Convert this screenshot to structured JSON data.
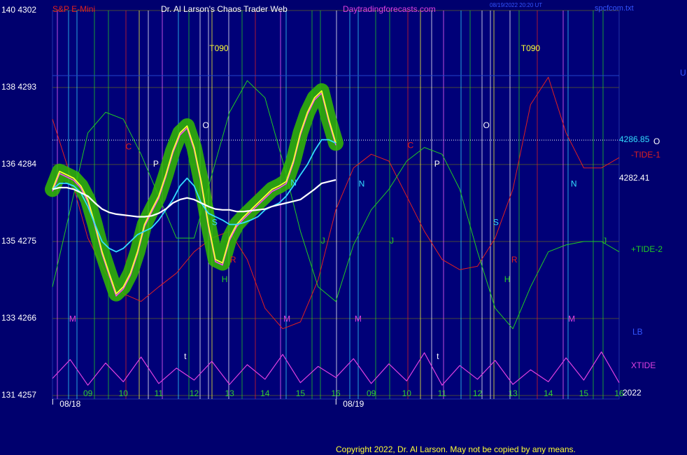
{
  "chart_data": {
    "type": "line",
    "instrument": "S&P E-Mini",
    "title": "Dr. Al Larson's Chaos Trader Web",
    "site": "Daytradingforecasts.com",
    "timestamp": "08/19/2022 20:20 UT",
    "file": "spcfcom.txt",
    "copyright": "Copyright 2022, Dr. Al Larson. May not be copied by any means.",
    "year": "2022",
    "xlim": [
      -1,
      15
    ],
    "ylim": [
      4257,
      4302
    ],
    "yticks": [
      {
        "value": 4302,
        "label": "140 4302"
      },
      {
        "value": 4293,
        "label": "138 4293"
      },
      {
        "value": 4284,
        "label": "136 4284"
      },
      {
        "value": 4275,
        "label": "135 4275"
      },
      {
        "value": 4266,
        "label": "133 4266"
      },
      {
        "value": 4257,
        "label": "131 4257"
      }
    ],
    "xticks": [
      {
        "value": 0,
        "label": "09"
      },
      {
        "value": 1,
        "label": "10"
      },
      {
        "value": 2,
        "label": "11"
      },
      {
        "value": 3,
        "label": "12"
      },
      {
        "value": 4,
        "label": "13"
      },
      {
        "value": 5,
        "label": "14"
      },
      {
        "value": 6,
        "label": "15"
      },
      {
        "value": 7,
        "label": "16"
      },
      {
        "value": 8,
        "label": "09"
      },
      {
        "value": 9,
        "label": "10"
      },
      {
        "value": 10,
        "label": "11"
      },
      {
        "value": 11,
        "label": "12"
      },
      {
        "value": 12,
        "label": "13"
      },
      {
        "value": 13,
        "label": "14"
      },
      {
        "value": 14,
        "label": "15"
      },
      {
        "value": 15,
        "label": "16"
      }
    ],
    "dates": [
      {
        "value": -0.5,
        "label": "08/18"
      },
      {
        "value": 7.5,
        "label": "08/19"
      }
    ],
    "grid": true,
    "reference_line": {
      "value": 4286.85,
      "label": "4286.85",
      "mark": "O",
      "color": "#00ffff"
    },
    "last_price": {
      "value": 4282.41,
      "label": "4282.41"
    },
    "series": [
      {
        "name": "-TIDE-1",
        "color": "#e02020",
        "width": 1,
        "x": [
          -1,
          -0.5,
          0,
          0.5,
          1,
          1.5,
          2,
          2.5,
          3,
          3.5,
          4,
          4.5,
          5,
          5.5,
          6,
          6.5,
          7,
          7.5,
          8,
          8.5,
          9,
          9.5,
          10,
          10.5,
          11,
          11.5,
          12,
          12.5,
          13,
          13.5,
          14,
          14.5,
          15
        ],
        "values": [
          4289.3,
          4282.8,
          4275.4,
          4271.3,
          4268.9,
          4268.0,
          4269.7,
          4271.3,
          4273.8,
          4275.4,
          4276.2,
          4272.9,
          4267.2,
          4264.8,
          4265.6,
          4270.5,
          4278.7,
          4283.6,
          4285.2,
          4284.4,
          4280.3,
          4276.2,
          4272.9,
          4271.7,
          4272.1,
          4275.4,
          4281.1,
          4291.0,
          4294.2,
          4287.7,
          4283.6,
          4283.6,
          4284.8
        ]
      },
      {
        "name": "+TIDE-2",
        "color": "#22cc22",
        "width": 1,
        "x": [
          -1,
          -0.5,
          0,
          0.5,
          1,
          1.5,
          2,
          2.5,
          3,
          3.5,
          4,
          4.5,
          5,
          5.5,
          6,
          6.5,
          7,
          7.5,
          8,
          8.5,
          9,
          9.5,
          10,
          10.5,
          11,
          11.5,
          12,
          12.5,
          13,
          13.5,
          14,
          14.5,
          15
        ],
        "values": [
          4269.7,
          4278.7,
          4287.7,
          4290.1,
          4289.3,
          4285.2,
          4280.3,
          4275.4,
          4275.4,
          4282.8,
          4290.1,
          4293.8,
          4291.8,
          4284.4,
          4276.2,
          4269.7,
          4268.0,
          4274.6,
          4278.7,
          4281.1,
          4284.4,
          4286.0,
          4285.2,
          4281.1,
          4273.8,
          4267.2,
          4264.8,
          4269.7,
          4273.8,
          4274.6,
          4275.0,
          4275.0,
          4273.8
        ]
      },
      {
        "name": "XTIDE",
        "color": "#e040e0",
        "width": 1.2,
        "x": [
          -1,
          -0.5,
          0,
          0.5,
          1,
          1.5,
          2,
          2.5,
          3,
          3.5,
          4,
          4.5,
          5,
          5.5,
          6,
          6.5,
          7,
          7.5,
          8,
          8.5,
          9,
          9.5,
          10,
          10.5,
          11,
          11.5,
          12,
          12.5,
          13,
          13.5,
          14,
          14.5,
          15
        ],
        "values": [
          4259.0,
          4261.2,
          4258.2,
          4260.8,
          4258.6,
          4261.5,
          4258.4,
          4260.2,
          4258.8,
          4261.0,
          4258.3,
          4260.6,
          4258.9,
          4261.8,
          4258.5,
          4260.4,
          4259.1,
          4261.3,
          4258.4,
          4260.7,
          4258.7,
          4262.0,
          4258.2,
          4260.5,
          4258.9,
          4261.1,
          4258.3,
          4260.0,
          4258.6,
          4261.4,
          4258.8,
          4262.1,
          4258.5
        ]
      },
      {
        "name": "Price",
        "color": "#ffff33",
        "width": 1.8,
        "halo": "#33bb00",
        "x": [
          -1,
          -0.8,
          -0.6,
          -0.4,
          -0.2,
          0,
          0.2,
          0.4,
          0.6,
          0.8,
          1,
          1.2,
          1.4,
          1.6,
          1.8,
          2,
          2.2,
          2.4,
          2.6,
          2.8,
          3,
          3.2,
          3.4,
          3.6,
          3.8,
          4,
          4.2,
          4.4,
          4.6,
          4.8,
          5,
          5.2,
          5.4,
          5.6,
          5.8,
          6,
          6.2,
          6.4,
          6.6,
          6.8,
          7
        ],
        "values": [
          4281.1,
          4283.2,
          4282.8,
          4282.4,
          4281.5,
          4279.9,
          4277.0,
          4273.8,
          4271.3,
          4268.9,
          4269.7,
          4271.3,
          4273.8,
          4277.0,
          4278.7,
          4280.3,
          4282.8,
          4285.6,
          4287.7,
          4288.5,
          4286.0,
          4282.0,
          4277.0,
          4272.9,
          4272.5,
          4275.4,
          4277.0,
          4277.9,
          4278.7,
          4279.5,
          4280.3,
          4281.1,
          4281.5,
          4282.0,
          4284.4,
          4287.7,
          4290.1,
          4291.8,
          4292.6,
          4289.3,
          4286.5
        ]
      },
      {
        "name": "Fast MA",
        "color": "#33ddff",
        "width": 1.8,
        "x": [
          -1,
          -0.8,
          -0.6,
          -0.4,
          -0.2,
          0,
          0.2,
          0.4,
          0.6,
          0.8,
          1,
          1.2,
          1.4,
          1.6,
          1.8,
          2,
          2.2,
          2.4,
          2.6,
          2.8,
          3,
          3.2,
          3.4,
          3.6,
          3.8,
          4,
          4.2,
          4.4,
          4.6,
          4.8,
          5,
          5.2,
          5.4,
          5.6,
          5.8,
          6,
          6.2,
          6.4,
          6.6,
          6.8,
          7
        ],
        "values": [
          4281.1,
          4281.8,
          4281.8,
          4281.5,
          4280.7,
          4279.1,
          4277.0,
          4275.0,
          4274.2,
          4273.8,
          4274.2,
          4275.0,
          4275.8,
          4276.2,
          4276.6,
          4277.5,
          4278.7,
          4279.9,
          4281.5,
          4282.4,
          4281.5,
          4279.5,
          4278.3,
          4277.9,
          4277.5,
          4277.0,
          4277.0,
          4277.2,
          4277.5,
          4277.9,
          4278.7,
          4279.1,
          4279.5,
          4280.3,
          4281.5,
          4282.8,
          4284.0,
          4285.6,
          4286.9,
          4286.9,
          4286.5
        ]
      },
      {
        "name": "Slow MA",
        "color": "#ffffff",
        "width": 2.2,
        "x": [
          -1,
          -0.8,
          -0.6,
          -0.4,
          -0.2,
          0,
          0.2,
          0.4,
          0.6,
          0.8,
          1,
          1.2,
          1.4,
          1.6,
          1.8,
          2,
          2.2,
          2.4,
          2.6,
          2.8,
          3,
          3.2,
          3.4,
          3.6,
          3.8,
          4,
          4.2,
          4.4,
          4.6,
          4.8,
          5,
          5.2,
          5.4,
          5.6,
          5.8,
          6,
          6.2,
          6.4,
          6.6,
          6.8,
          7
        ],
        "values": [
          4281.1,
          4281.3,
          4281.3,
          4281.1,
          4280.7,
          4280.3,
          4279.5,
          4278.8,
          4278.4,
          4278.2,
          4278.1,
          4278.0,
          4277.9,
          4277.9,
          4278.0,
          4278.3,
          4278.8,
          4279.5,
          4279.9,
          4280.1,
          4279.9,
          4279.5,
          4279.1,
          4278.8,
          4278.7,
          4278.7,
          4278.5,
          4278.5,
          4278.6,
          4278.7,
          4278.8,
          4279.1,
          4279.3,
          4279.5,
          4279.7,
          4279.9,
          4280.5,
          4281.1,
          4281.8,
          4282.0,
          4282.2
        ]
      }
    ],
    "side_labels": [
      {
        "text": "LB",
        "color": "#3355ff"
      },
      {
        "text": "U",
        "color": "#3355ff"
      }
    ],
    "annotations": [
      {
        "text": "T090",
        "x": 3.7,
        "y": 4297.5,
        "color": "#ffff33"
      },
      {
        "text": "T090",
        "x": 12.5,
        "y": 4297.5,
        "color": "#ffff33"
      },
      {
        "text": "O",
        "x": 3.33,
        "y": 4288.5,
        "color": "#ffffff"
      },
      {
        "text": "O",
        "x": 11.25,
        "y": 4288.5,
        "color": "#ffffff"
      },
      {
        "text": "P",
        "x": 1.92,
        "y": 4284.0,
        "color": "#ffffff"
      },
      {
        "text": "P",
        "x": 9.86,
        "y": 4284.0,
        "color": "#ffffff"
      },
      {
        "text": "C",
        "x": 1.15,
        "y": 4286.0,
        "color": "#e02020"
      },
      {
        "text": "C",
        "x": 9.11,
        "y": 4286.2,
        "color": "#e02020"
      },
      {
        "text": "N",
        "x": 5.81,
        "y": 4281.8,
        "color": "#33ddff"
      },
      {
        "text": "N",
        "x": 7.73,
        "y": 4281.7,
        "color": "#33ddff"
      },
      {
        "text": "N",
        "x": 13.72,
        "y": 4281.7,
        "color": "#33ddff"
      },
      {
        "text": "S",
        "x": 3.58,
        "y": 4277.2,
        "color": "#33ddff"
      },
      {
        "text": "S",
        "x": 11.52,
        "y": 4277.2,
        "color": "#33ddff"
      },
      {
        "text": "J",
        "x": 6.64,
        "y": 4275.0,
        "color": "#22cc22"
      },
      {
        "text": "J",
        "x": 8.58,
        "y": 4275.0,
        "color": "#22cc22"
      },
      {
        "text": "J",
        "x": 14.59,
        "y": 4275.0,
        "color": "#22cc22"
      },
      {
        "text": "R",
        "x": 4.1,
        "y": 4272.8,
        "color": "#e02020"
      },
      {
        "text": "R",
        "x": 12.04,
        "y": 4272.8,
        "color": "#e02020"
      },
      {
        "text": "H",
        "x": 3.86,
        "y": 4270.5,
        "color": "#22cc22"
      },
      {
        "text": "H",
        "x": 11.84,
        "y": 4270.5,
        "color": "#22cc22"
      },
      {
        "text": "M",
        "x": -0.43,
        "y": 4265.9,
        "color": "#e040e0"
      },
      {
        "text": "M",
        "x": 5.62,
        "y": 4265.9,
        "color": "#e040e0"
      },
      {
        "text": "M",
        "x": 7.63,
        "y": 4265.9,
        "color": "#e040e0"
      },
      {
        "text": "M",
        "x": 13.66,
        "y": 4265.9,
        "color": "#e040e0"
      },
      {
        "text": "t",
        "x": 2.75,
        "y": 4261.5,
        "color": "#ffffff"
      },
      {
        "text": "t",
        "x": 9.88,
        "y": 4261.5,
        "color": "#ffffff"
      }
    ]
  }
}
